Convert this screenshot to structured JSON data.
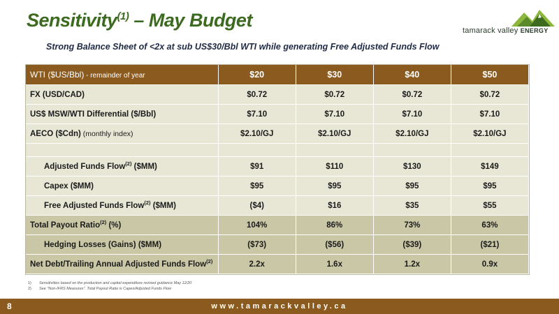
{
  "slide": {
    "title_main": "Sensitivity",
    "title_sup": "(1)",
    "title_rest": " – May Budget",
    "subtitle": "Strong Balance Sheet of <2x at sub US$30/Bbl WTI while generating Free Adjusted Funds Flow"
  },
  "logo": {
    "name": "tamarack valley",
    "suffix": "ENERGY",
    "icon": "mountain-logo-icon",
    "colors": [
      "#5a8a2a",
      "#8bb83a",
      "#3c6b20"
    ]
  },
  "table": {
    "header": {
      "label": "WTI  ($US/Bbl)",
      "label_small": " - remainder of year",
      "cols": [
        "$20",
        "$30",
        "$40",
        "$50"
      ]
    },
    "rows": [
      {
        "label": "FX (USD/CAD)",
        "values": [
          "$0.72",
          "$0.72",
          "$0.72",
          "$0.72"
        ]
      },
      {
        "label": "US$ MSW/WTI Differential ($/Bbl)",
        "values": [
          "$7.10",
          "$7.10",
          "$7.10",
          "$7.10"
        ]
      },
      {
        "label": "AECO ($Cdn)",
        "label_small": " (monthly index)",
        "values": [
          "$2.10/GJ",
          "$2.10/GJ",
          "$2.10/GJ",
          "$2.10/GJ"
        ]
      },
      {
        "label": "Adjusted Funds Flow",
        "sup": "(2)",
        "label_rest": " ($MM)",
        "values": [
          "$91",
          "$110",
          "$130",
          "$149"
        ]
      },
      {
        "label": "Capex ($MM)",
        "values": [
          "$95",
          "$95",
          "$95",
          "$95"
        ]
      },
      {
        "label": "Free Adjusted Funds Flow",
        "sup": "(2)",
        "label_rest": " ($MM)",
        "values": [
          "($4)",
          "$16",
          "$35",
          "$55"
        ]
      },
      {
        "label": "Total Payout Ratio",
        "sup": "(2)",
        "label_rest": " (%)",
        "values": [
          "104%",
          "86%",
          "73%",
          "63%"
        ]
      },
      {
        "label": "Hedging Losses (Gains) ($MM)",
        "values": [
          "($73)",
          "($56)",
          "($39)",
          "($21)"
        ]
      },
      {
        "label": "Net Debt/Trailing Annual Adjusted Funds Flow",
        "sup": "(2)",
        "values": [
          "2.2x",
          "1.6x",
          "1.2x",
          "0.9x"
        ]
      }
    ]
  },
  "footnotes": [
    {
      "num": "1)",
      "text": "Sensitivities based on the production and capital expenditure revised guidance May 12/20"
    },
    {
      "num": "2)",
      "text": "See \"Non-IFRS Measures\". Total Payout Ratio is Capex/Adjusted Funds Flow"
    }
  ],
  "footer": {
    "page": "8",
    "url": "www.tamarackvalley.ca"
  },
  "colors": {
    "title_green": "#3c6b20",
    "header_brown": "#8b5a1e",
    "row_light": "#e8e7d6",
    "row_mid": "#c9c7a5"
  }
}
